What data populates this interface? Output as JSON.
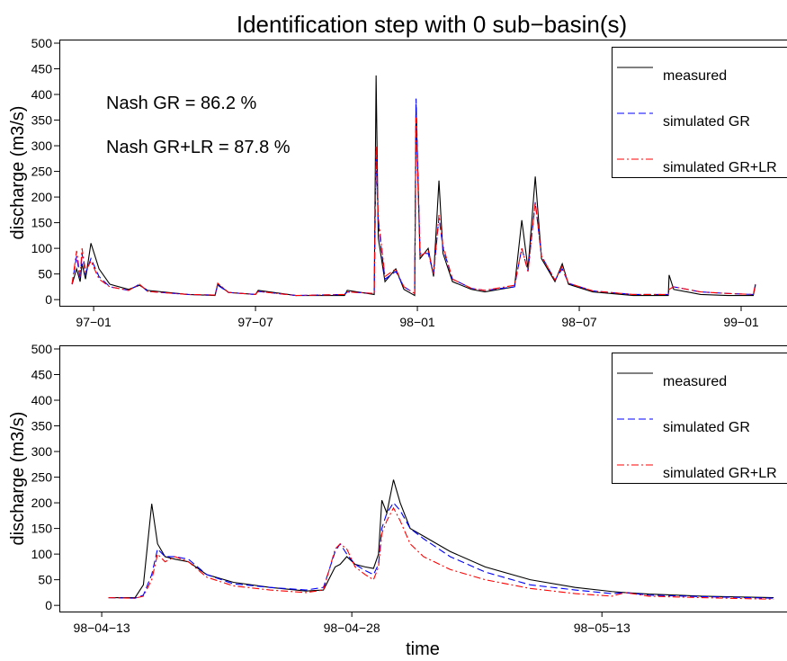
{
  "title": "Identification step with 0 sub−basin(s)",
  "x_label": "time",
  "chart_data": [
    {
      "type": "line",
      "y_label": "discharge (m3/s)",
      "annotations": [
        "Nash GR = 86.2 %",
        "Nash GR+LR = 87.8 %"
      ],
      "legend": "top-right",
      "x": [
        -0.8,
        -0.63,
        -0.5,
        -0.43,
        -0.3,
        -0.1,
        0.2,
        0.6,
        1.3,
        1.7,
        2.0,
        3.5,
        4.5,
        4.6,
        5.0,
        6.0,
        6.1,
        7.5,
        9.3,
        9.4,
        10.4,
        10.47,
        10.55,
        10.8,
        11.2,
        11.5,
        11.9,
        11.95,
        12.1,
        12.4,
        12.6,
        12.8,
        12.95,
        13.3,
        14.0,
        14.5,
        15.6,
        15.87,
        16.1,
        16.37,
        16.6,
        17.1,
        17.37,
        17.6,
        18.5,
        20.0,
        21.3,
        21.33,
        21.5,
        22.5,
        23.5,
        24.45,
        24.53
      ],
      "xlim": [
        -1.27,
        25.7
      ],
      "xticks": [
        {
          "value": 0,
          "label": "97−01"
        },
        {
          "value": 6,
          "label": "97−07"
        },
        {
          "value": 12,
          "label": "98−01"
        },
        {
          "value": 18,
          "label": "98−07"
        },
        {
          "value": 24,
          "label": "99−01"
        }
      ],
      "ylim": [
        -12,
        507
      ],
      "yticks": [
        0,
        50,
        100,
        150,
        200,
        250,
        300,
        350,
        400,
        450,
        500
      ],
      "series": [
        {
          "name": "measured",
          "color": "#000000",
          "linestyle": "solid",
          "values": [
            30,
            60,
            35,
            70,
            40,
            110,
            60,
            30,
            20,
            28,
            18,
            10,
            8,
            30,
            14,
            10,
            18,
            8,
            8,
            18,
            10,
            437,
            120,
            35,
            60,
            20,
            8,
            380,
            80,
            100,
            45,
            232,
            90,
            35,
            20,
            15,
            25,
            155,
            60,
            240,
            80,
            35,
            70,
            30,
            15,
            8,
            8,
            48,
            20,
            10,
            8,
            8,
            28
          ]
        },
        {
          "name": "simulated GR",
          "color": "#0000ff",
          "linestyle": "dashed",
          "values": [
            30,
            85,
            40,
            90,
            50,
            80,
            45,
            25,
            18,
            30,
            16,
            10,
            9,
            28,
            14,
            10,
            16,
            8,
            10,
            15,
            12,
            280,
            150,
            40,
            55,
            25,
            12,
            392,
            90,
            90,
            50,
            160,
            100,
            40,
            22,
            18,
            25,
            100,
            55,
            190,
            85,
            38,
            60,
            32,
            17,
            10,
            10,
            20,
            25,
            15,
            12,
            10,
            30
          ]
        },
        {
          "name": "simulated GR+LR",
          "color": "#ff0000",
          "linestyle": "dashdot",
          "values": [
            30,
            95,
            45,
            100,
            55,
            75,
            40,
            25,
            18,
            30,
            16,
            10,
            9,
            32,
            14,
            10,
            16,
            8,
            10,
            15,
            12,
            300,
            160,
            45,
            60,
            25,
            12,
            355,
            85,
            95,
            50,
            165,
            105,
            40,
            22,
            18,
            28,
            100,
            55,
            190,
            85,
            38,
            65,
            32,
            17,
            10,
            10,
            20,
            25,
            15,
            12,
            10,
            30
          ]
        }
      ]
    },
    {
      "type": "line",
      "y_label": "discharge (m3/s)",
      "legend": "top-right",
      "x": [
        0.4,
        2.0,
        2.5,
        3.0,
        3.35,
        3.8,
        4.4,
        5.2,
        6.3,
        7.9,
        10.1,
        12.25,
        13.3,
        14.0,
        14.3,
        14.7,
        15.2,
        15.8,
        16.3,
        16.6,
        16.8,
        17.1,
        17.5,
        17.9,
        18.5,
        19.3,
        20.9,
        23.0,
        25.7,
        28.4,
        30.6,
        31.4,
        32.8,
        36.0,
        40.3
      ],
      "xlim": [
        -2.54,
        41.1
      ],
      "xticks": [
        {
          "value": 0,
          "label": "98−04−13"
        },
        {
          "value": 15,
          "label": "98−04−28"
        },
        {
          "value": 30,
          "label": "98−05−13"
        }
      ],
      "ylim": [
        -12,
        507
      ],
      "yticks": [
        0,
        50,
        100,
        150,
        200,
        250,
        300,
        350,
        400,
        450,
        500
      ],
      "series": [
        {
          "name": "measured",
          "color": "#000000",
          "linestyle": "solid",
          "values": [
            15,
            15,
            40,
            198,
            120,
            95,
            90,
            85,
            60,
            45,
            35,
            28,
            30,
            75,
            80,
            95,
            80,
            75,
            72,
            100,
            205,
            180,
            245,
            200,
            150,
            135,
            105,
            75,
            50,
            35,
            27,
            25,
            22,
            18,
            15
          ]
        },
        {
          "name": "simulated GR",
          "color": "#0000ff",
          "linestyle": "dashed",
          "values": [
            15,
            14,
            20,
            60,
            110,
            95,
            95,
            90,
            60,
            42,
            35,
            30,
            35,
            105,
            120,
            100,
            80,
            68,
            60,
            80,
            150,
            180,
            200,
            185,
            150,
            130,
            95,
            65,
            40,
            30,
            23,
            25,
            20,
            17,
            14
          ]
        },
        {
          "name": "simulated GR+LR",
          "color": "#ff0000",
          "linestyle": "dashdot",
          "values": [
            15,
            14,
            18,
            50,
            100,
            85,
            95,
            85,
            55,
            38,
            30,
            25,
            30,
            110,
            120,
            110,
            75,
            60,
            50,
            75,
            140,
            165,
            190,
            165,
            120,
            95,
            70,
            50,
            33,
            23,
            18,
            25,
            18,
            15,
            12
          ]
        }
      ]
    }
  ]
}
